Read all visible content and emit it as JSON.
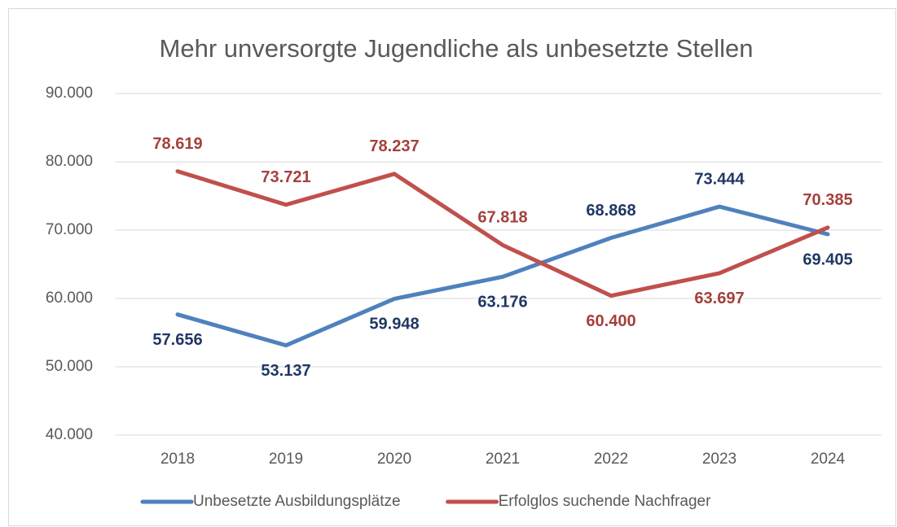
{
  "chart_data": {
    "type": "line",
    "title": "Mehr unversorgte Jugendliche als unbesetzte Stellen",
    "categories": [
      "2018",
      "2019",
      "2020",
      "2021",
      "2022",
      "2023",
      "2024"
    ],
    "series": [
      {
        "name": "Unbesetzte Ausbildungsplätze",
        "color": "#4f81bd",
        "values": [
          57656,
          53137,
          59948,
          63176,
          68868,
          73444,
          69405
        ],
        "value_labels": [
          "57.656",
          "53.137",
          "59.948",
          "63.176",
          "68.868",
          "73.444",
          "69.405"
        ]
      },
      {
        "name": "Erfolglos suchende Nachfrager",
        "color": "#c0504d",
        "values": [
          78619,
          73721,
          78237,
          67818,
          60400,
          63697,
          70385
        ],
        "value_labels": [
          "78.619",
          "73.721",
          "78.237",
          "67.818",
          "60.400",
          "63.697",
          "70.385"
        ]
      }
    ],
    "ylim": [
      40000,
      90000
    ],
    "yticks": [
      {
        "value": 40000,
        "label": "40.000"
      },
      {
        "value": 50000,
        "label": "50.000"
      },
      {
        "value": 60000,
        "label": "60.000"
      },
      {
        "value": 70000,
        "label": "70.000"
      },
      {
        "value": 80000,
        "label": "80.000"
      },
      {
        "value": 90000,
        "label": "90.000"
      }
    ],
    "grid": true,
    "legend": "bottom"
  }
}
